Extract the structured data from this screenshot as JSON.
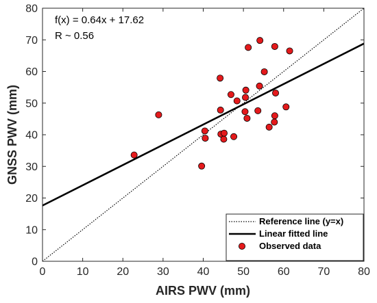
{
  "chart_data": {
    "type": "scatter",
    "xlabel": "AIRS PWV (mm)",
    "ylabel": "GNSS PWV (mm)",
    "xlim": [
      0,
      80
    ],
    "ylim": [
      0,
      80
    ],
    "xticks": [
      0,
      10,
      20,
      30,
      40,
      50,
      60,
      70,
      80
    ],
    "yticks": [
      0,
      10,
      20,
      30,
      40,
      50,
      60,
      70,
      80
    ],
    "grid": false,
    "legend_position": "bottom-right",
    "annotations": [
      "f(x) = 0.64x + 17.62",
      "R ~ 0.56"
    ],
    "series": [
      {
        "name": "Reference line (y=x)",
        "kind": "line",
        "style": "dotted",
        "color": "#000000",
        "points": [
          [
            0,
            0
          ],
          [
            80,
            80
          ]
        ]
      },
      {
        "name": "Linear fitted line",
        "kind": "line",
        "style": "solid",
        "color": "#000000",
        "slope": 0.64,
        "intercept": 17.62
      },
      {
        "name": "Observed data",
        "kind": "scatter",
        "color": "#e41a1c",
        "edge_color": "#000000",
        "points": [
          [
            22.8,
            33.6
          ],
          [
            28.9,
            46.3
          ],
          [
            39.6,
            30.1
          ],
          [
            40.4,
            41.2
          ],
          [
            40.5,
            38.9
          ],
          [
            44.2,
            57.9
          ],
          [
            44.3,
            47.8
          ],
          [
            44.4,
            40.2
          ],
          [
            45.1,
            38.6
          ],
          [
            45.2,
            40.5
          ],
          [
            46.9,
            52.7
          ],
          [
            47.6,
            39.4
          ],
          [
            48.4,
            50.7
          ],
          [
            50.4,
            47.3
          ],
          [
            50.5,
            51.8
          ],
          [
            50.6,
            54.1
          ],
          [
            50.9,
            45.2
          ],
          [
            51.2,
            67.6
          ],
          [
            53.6,
            47.6
          ],
          [
            54.0,
            55.4
          ],
          [
            54.1,
            69.8
          ],
          [
            55.2,
            59.9
          ],
          [
            56.4,
            42.4
          ],
          [
            57.7,
            44.0
          ],
          [
            57.8,
            46.0
          ],
          [
            57.8,
            67.9
          ],
          [
            58.0,
            53.2
          ],
          [
            60.6,
            48.8
          ],
          [
            61.5,
            66.5
          ]
        ]
      }
    ]
  }
}
